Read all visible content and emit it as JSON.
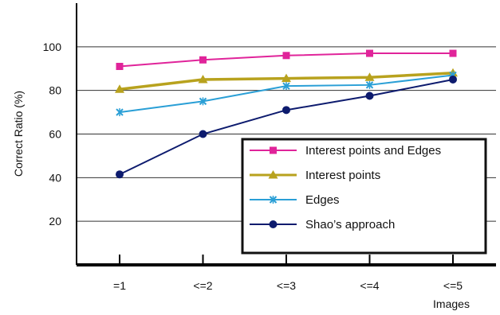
{
  "chart_data": {
    "type": "line",
    "title": "",
    "xlabel": "Images",
    "ylabel": "Correct Ratio  (%)",
    "categories": [
      "=1",
      "<=2",
      "<=3",
      "<=4",
      "<=5"
    ],
    "yticks": [
      "20",
      "40",
      "60",
      "80",
      "100"
    ],
    "ylim": [
      0,
      120
    ],
    "grid": true,
    "legend_position": "bottom-right",
    "series": [
      {
        "name": "Interest points and Edges",
        "values": [
          91,
          94,
          96,
          97,
          97
        ],
        "color": "#e0249a",
        "marker": "square"
      },
      {
        "name": "Interest points",
        "values": [
          80.5,
          85,
          85.5,
          86,
          88
        ],
        "color": "#b8a21e",
        "marker": "triangle"
      },
      {
        "name": "Edges",
        "values": [
          70,
          75,
          82,
          82.5,
          87
        ],
        "color": "#2a9fd6",
        "marker": "x"
      },
      {
        "name": "Shao’s approach",
        "values": [
          41.5,
          60,
          71,
          77.5,
          85
        ],
        "color": "#0d1b6e",
        "marker": "circle"
      }
    ]
  }
}
